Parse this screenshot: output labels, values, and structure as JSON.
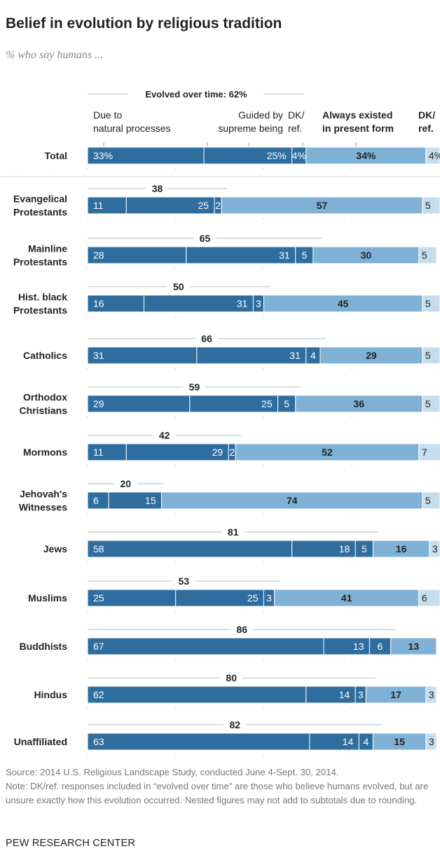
{
  "title": "Belief in evolution by religious tradition",
  "subtitle": "% who say humans ...",
  "footer": {
    "source": "Source: 2014 U.S. Religious Landscape Study, conducted June 4-Sept. 30, 2014.",
    "note": "Note: DK/ref. responses included in “evolved over time” are those who believe humans evolved, but are unsure exactly how this evolution occurred. Nested figures may not add to subtotals due to rounding.",
    "brand": "PEW RESEARCH CENTER"
  },
  "chart_data": {
    "type": "bar",
    "orientation": "horizontal-stacked",
    "group_header": "Evolved over time: 62%",
    "legend": [
      {
        "label": [
          "Due to",
          "natural processes"
        ],
        "color": "#2e6d9e"
      },
      {
        "label": [
          "Guided by",
          "supreme being"
        ],
        "color": "#2e6d9e"
      },
      {
        "label": [
          "DK/",
          "ref."
        ],
        "color": "#2e6d9e"
      },
      {
        "label": [
          "Always existed",
          "in present form"
        ],
        "color": "#7fb1d6"
      },
      {
        "label": [
          "DK/",
          "ref."
        ],
        "color": "#c6ddee"
      }
    ],
    "xlim": [
      0,
      100
    ],
    "categories": [
      "Total",
      "Evangelical Protestants",
      "Mainline Protestants",
      "Hist. black Protestants",
      "Catholics",
      "Orthodox Christians",
      "Mormons",
      "Jehovah's Witnesses",
      "Jews",
      "Muslims",
      "Buddhists",
      "Hindus",
      "Unaffiliated"
    ],
    "category_lines": [
      [
        "Total"
      ],
      [
        "Evangelical",
        "Protestants"
      ],
      [
        "Mainline",
        "Protestants"
      ],
      [
        "Hist. black",
        "Protestants"
      ],
      [
        "Catholics"
      ],
      [
        "Orthodox",
        "Christians"
      ],
      [
        "Mormons"
      ],
      [
        "Jehovah's",
        "Witnesses"
      ],
      [
        "Jews"
      ],
      [
        "Muslims"
      ],
      [
        "Buddhists"
      ],
      [
        "Hindus"
      ],
      [
        "Unaffiliated"
      ]
    ],
    "evolved_subtotal": [
      62,
      38,
      65,
      50,
      66,
      59,
      42,
      20,
      81,
      53,
      86,
      80,
      82
    ],
    "series": [
      {
        "name": "Due to natural processes",
        "values": [
          33,
          11,
          28,
          16,
          31,
          29,
          11,
          6,
          58,
          25,
          67,
          62,
          63
        ]
      },
      {
        "name": "Guided by supreme being",
        "values": [
          25,
          25,
          31,
          31,
          31,
          25,
          29,
          15,
          18,
          25,
          13,
          14,
          14
        ]
      },
      {
        "name": "DK/ref.",
        "values": [
          4,
          2,
          5,
          3,
          4,
          5,
          2,
          null,
          5,
          3,
          6,
          3,
          4
        ]
      },
      {
        "name": "Always existed in present form",
        "values": [
          34,
          57,
          30,
          45,
          29,
          36,
          52,
          74,
          16,
          41,
          13,
          17,
          15
        ]
      },
      {
        "name": "DK/ref.",
        "values": [
          4,
          5,
          5,
          5,
          5,
          5,
          7,
          5,
          3,
          6,
          null,
          3,
          3
        ]
      }
    ]
  }
}
